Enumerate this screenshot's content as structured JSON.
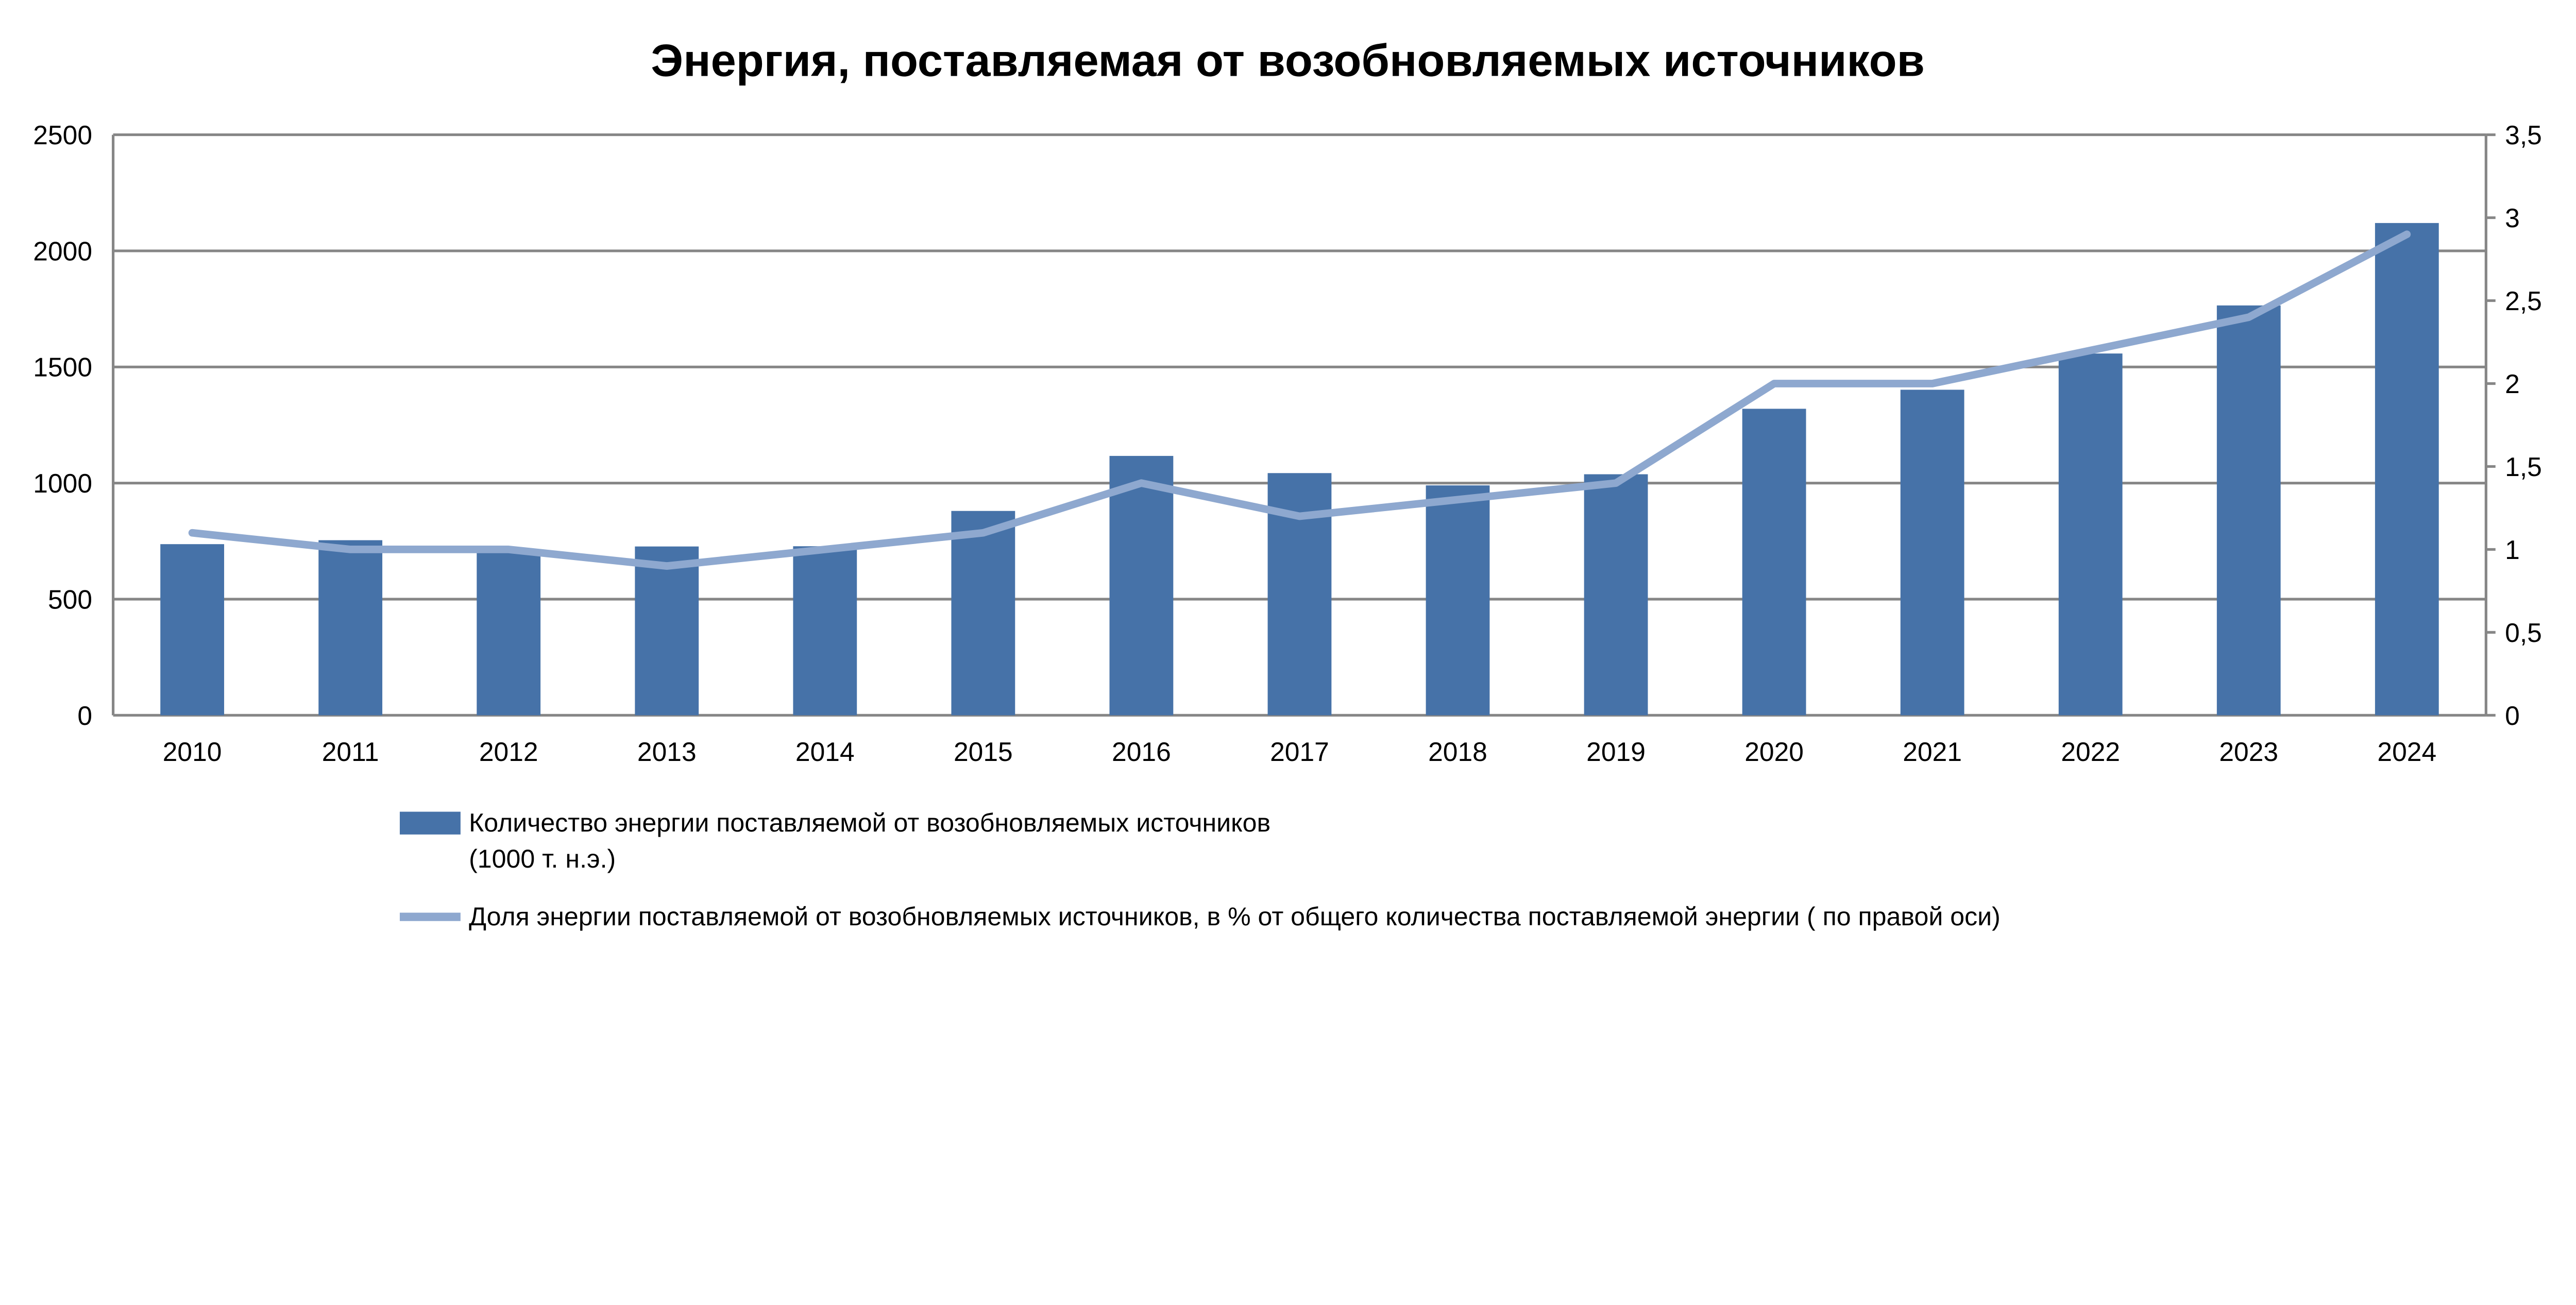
{
  "chart_data": {
    "type": "bar+line",
    "title": "Энергия, поставляемая от возобновляемых источников",
    "categories": [
      "2010",
      "2011",
      "2012",
      "2013",
      "2014",
      "2015",
      "2016",
      "2017",
      "2018",
      "2019",
      "2020",
      "2021",
      "2022",
      "2023",
      "2024"
    ],
    "series": [
      {
        "name": "Количество энергии поставляемой от возобновляемых источников",
        "name_line2": "(1000 т. н.э.)",
        "type": "bar",
        "axis": "left",
        "color": "#4672A8",
        "values": [
          737,
          754,
          710,
          727,
          728,
          880,
          1117,
          1043,
          990,
          1038,
          1320,
          1402,
          1558,
          1765,
          2120
        ]
      },
      {
        "name": "Доля энергии поставляемой от возобновляемых источников, в % от общего количества поставляемой энергии ( по правой оси)",
        "type": "line",
        "axis": "right",
        "color": "#8EA8CF",
        "values": [
          1.1,
          1.0,
          1.0,
          0.9,
          1.0,
          1.1,
          1.4,
          1.2,
          1.3,
          1.4,
          2.0,
          2.0,
          2.2,
          2.4,
          2.9
        ]
      }
    ],
    "left_axis": {
      "ylim": [
        0,
        2500
      ],
      "ticks": [
        "0",
        "500",
        "1000",
        "1500",
        "2000",
        "2500"
      ]
    },
    "right_axis": {
      "ylim": [
        0,
        3.5
      ],
      "ticks": [
        "0",
        "0,5",
        "1",
        "1,5",
        "2",
        "2,5",
        "3",
        "3,5"
      ]
    },
    "grid": true,
    "legend_position": "bottom"
  }
}
